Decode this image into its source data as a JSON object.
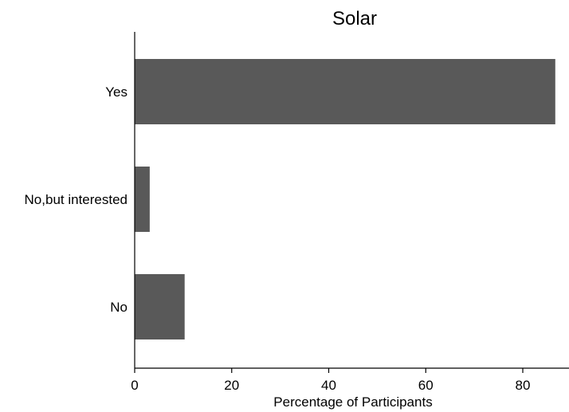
{
  "chart_data": {
    "type": "bar",
    "orientation": "horizontal",
    "title": "Solar",
    "categories": [
      "Yes",
      "No,but interested",
      "No"
    ],
    "values": [
      86.7,
      3.1,
      10.3
    ],
    "xlabel": "Percentage of Participants",
    "ylabel": "",
    "xlim": [
      0,
      88
    ],
    "xticks": [
      0,
      20,
      40,
      60,
      80
    ],
    "xtick_labels": [
      "0",
      "20",
      "40",
      "60",
      "80"
    ],
    "bar_color": "#595959",
    "grid": false,
    "legend": "none"
  }
}
